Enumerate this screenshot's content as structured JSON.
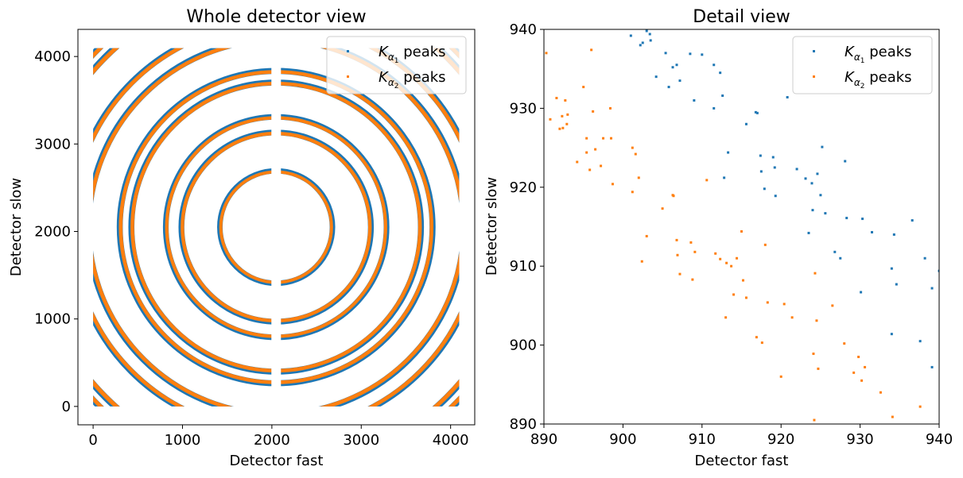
{
  "chart_data": [
    {
      "type": "scatter",
      "title": "Whole detector view",
      "xlabel": "Detector fast",
      "ylabel": "Detector slow",
      "xlim": [
        -170,
        4270
      ],
      "ylim": [
        -210,
        4310
      ],
      "xticks": [
        0,
        1000,
        2000,
        3000,
        4000
      ],
      "yticks": [
        0,
        1000,
        2000,
        3000,
        4000
      ],
      "legend_position": "upper-right",
      "center": [
        2048,
        2050
      ],
      "rings": [
        {
          "radius": 630,
          "band": 8
        },
        {
          "radius": 1060,
          "band": 12
        },
        {
          "radius": 1235,
          "band": 10
        },
        {
          "radius": 1620,
          "band": 14
        },
        {
          "radius": 1750,
          "band": 14
        },
        {
          "radius": 2100,
          "band": 16
        },
        {
          "radius": 2290,
          "band": 16
        },
        {
          "radius": 2700,
          "band": 20
        },
        {
          "radius": 2820,
          "band": 18
        },
        {
          "radius": 2960,
          "band": 18
        }
      ],
      "series": [
        {
          "name": "K_α1 peaks",
          "color": "#1f77b4"
        },
        {
          "name": "K_α2 peaks",
          "color": "#ff7f0e"
        }
      ]
    },
    {
      "type": "scatter",
      "title": "Detail view",
      "xlabel": "Detector fast",
      "ylabel": "Detector slow",
      "xlim": [
        890,
        940
      ],
      "ylim": [
        890,
        940
      ],
      "xticks": [
        890,
        900,
        910,
        920,
        930,
        940
      ],
      "yticks": [
        890,
        900,
        910,
        920,
        930,
        940
      ],
      "legend_position": "upper-right",
      "series": [
        {
          "name": "K_α1 peaks",
          "color": "#1f77b4",
          "points": [
            [
              901,
              939.2
            ],
            [
              902.2,
              938
            ],
            [
              902.5,
              938.3
            ],
            [
              903,
              939.8
            ],
            [
              903.4,
              939.4
            ],
            [
              903.5,
              938.6
            ],
            [
              904.2,
              934
            ],
            [
              905.4,
              937
            ],
            [
              905.8,
              932.7
            ],
            [
              906.3,
              935.2
            ],
            [
              906.8,
              935.5
            ],
            [
              907.2,
              933.5
            ],
            [
              908.5,
              936.9
            ],
            [
              909,
              931
            ],
            [
              910,
              936.8
            ],
            [
              911.5,
              935.5
            ],
            [
              911.5,
              930
            ],
            [
              912.3,
              934.5
            ],
            [
              912.6,
              931.6
            ],
            [
              912.8,
              921.2
            ],
            [
              913.3,
              924.4
            ],
            [
              915.6,
              928
            ],
            [
              916.8,
              929.5
            ],
            [
              917,
              929.4
            ],
            [
              917.4,
              924
            ],
            [
              917.5,
              922
            ],
            [
              917.9,
              919.8
            ],
            [
              919,
              923.8
            ],
            [
              919.2,
              922.5
            ],
            [
              919.3,
              918.9
            ],
            [
              920.8,
              931.4
            ],
            [
              922,
              922.3
            ],
            [
              923.1,
              921.1
            ],
            [
              923.5,
              914.2
            ],
            [
              923.9,
              920.5
            ],
            [
              924,
              917.1
            ],
            [
              924.6,
              921.7
            ],
            [
              925,
              919
            ],
            [
              925.2,
              925.1
            ],
            [
              925.6,
              916.7
            ],
            [
              926.8,
              911.8
            ],
            [
              927.5,
              911
            ],
            [
              928.1,
              923.3
            ],
            [
              928.3,
              916.1
            ],
            [
              930.1,
              906.7
            ],
            [
              930.3,
              916
            ],
            [
              931.5,
              914.3
            ],
            [
              934,
              901.4
            ],
            [
              934,
              909.7
            ],
            [
              934.3,
              914
            ],
            [
              934.6,
              907.7
            ],
            [
              936.6,
              915.8
            ],
            [
              937.6,
              900.5
            ],
            [
              938.2,
              911
            ],
            [
              939.1,
              907.2
            ],
            [
              939.1,
              897.2
            ],
            [
              940,
              909.4
            ]
          ]
        },
        {
          "name": "K_α2 peaks",
          "color": "#ff7f0e",
          "points": [
            [
              890.3,
              937
            ],
            [
              890.8,
              928.6
            ],
            [
              891.6,
              931.3
            ],
            [
              892,
              927.4
            ],
            [
              892.3,
              929
            ],
            [
              892.4,
              927.5
            ],
            [
              892.7,
              931
            ],
            [
              892.9,
              928
            ],
            [
              893,
              929.2
            ],
            [
              894.2,
              923.2
            ],
            [
              895,
              932.7
            ],
            [
              895.4,
              926.2
            ],
            [
              895.4,
              924.4
            ],
            [
              895.8,
              922.2
            ],
            [
              896,
              937.4
            ],
            [
              896.2,
              929.6
            ],
            [
              896.5,
              924.8
            ],
            [
              897.2,
              922.7
            ],
            [
              897.5,
              926.2
            ],
            [
              898.4,
              930
            ],
            [
              898.5,
              926.2
            ],
            [
              898.7,
              920.4
            ],
            [
              901.2,
              919.4
            ],
            [
              901.2,
              925
            ],
            [
              901.6,
              924.2
            ],
            [
              902,
              921.2
            ],
            [
              902.4,
              910.6
            ],
            [
              903,
              913.8
            ],
            [
              905,
              917.3
            ],
            [
              906.3,
              919
            ],
            [
              906.4,
              918.9
            ],
            [
              906.8,
              913.3
            ],
            [
              906.9,
              911.4
            ],
            [
              907.2,
              909
            ],
            [
              908.6,
              913
            ],
            [
              908.8,
              908.3
            ],
            [
              909.1,
              911.8
            ],
            [
              910.6,
              920.9
            ],
            [
              911.7,
              911.6
            ],
            [
              912.3,
              910.9
            ],
            [
              913,
              903.5
            ],
            [
              913.1,
              910.4
            ],
            [
              913.7,
              910
            ],
            [
              914,
              906.4
            ],
            [
              914.4,
              911
            ],
            [
              915,
              914.4
            ],
            [
              915.2,
              908.2
            ],
            [
              915.6,
              906
            ],
            [
              916.9,
              901
            ],
            [
              917.6,
              900.3
            ],
            [
              918,
              912.7
            ],
            [
              918.3,
              905.4
            ],
            [
              920,
              896
            ],
            [
              920.4,
              905.2
            ],
            [
              921.4,
              903.5
            ],
            [
              924.1,
              898.9
            ],
            [
              924.2,
              890.5
            ],
            [
              924.3,
              909.1
            ],
            [
              924.5,
              903.1
            ],
            [
              924.7,
              897
            ],
            [
              926.5,
              905
            ],
            [
              928,
              900.2
            ],
            [
              929.2,
              896.5
            ],
            [
              929.8,
              898.5
            ],
            [
              930.2,
              895.5
            ],
            [
              930.6,
              897.2
            ],
            [
              932.6,
              894
            ],
            [
              934.1,
              890.9
            ],
            [
              937.6,
              892.2
            ]
          ]
        }
      ]
    }
  ]
}
